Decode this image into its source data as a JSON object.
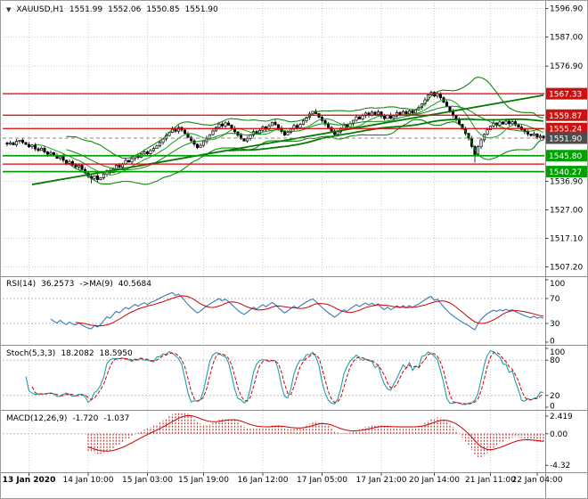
{
  "header": {
    "dropdown_icon": "▼",
    "symbol": "XAUUSD,H1",
    "open": "1551.99",
    "high": "1552.06",
    "low": "1550.85",
    "close": "1551.90"
  },
  "chart_data": {
    "type": "candlestick",
    "title": "XAUUSD,H1",
    "symbol": "XAUUSD",
    "timeframe": "H1",
    "main": {
      "ylim": [
        1505.5,
        1598.0
      ],
      "bar_step": 3.5,
      "grid_prices": [
        1596.9,
        1587.0,
        1576.9,
        1566.9,
        1556.9,
        1547.0,
        1536.9,
        1527.0,
        1517.1,
        1507.2
      ],
      "axis_ticks": [
        {
          "price": 1596.9,
          "label": "1596.90"
        },
        {
          "price": 1587.0,
          "label": "1587.00"
        },
        {
          "price": 1576.9,
          "label": "1576.90"
        },
        {
          "price": 1536.9,
          "label": "1536.90"
        },
        {
          "price": 1527.0,
          "label": "1527.00"
        },
        {
          "price": 1517.1,
          "label": "1517.10"
        },
        {
          "price": 1507.2,
          "label": "1507.20"
        }
      ],
      "level_badges": [
        {
          "price": 1567.33,
          "label": "1567.33",
          "color": "#cc1111",
          "type": "resistance"
        },
        {
          "price": 1559.87,
          "label": "1559.87",
          "color": "#cc1111",
          "type": "resistance"
        },
        {
          "price": 1555.24,
          "label": "1555.24",
          "color": "#cc1111",
          "type": "resistance"
        },
        {
          "price": 1551.9,
          "label": "1551.90",
          "color": "#4d4d4d",
          "type": "current-price"
        },
        {
          "price": 1545.8,
          "label": "1545.80",
          "color": "#00a000",
          "type": "support"
        },
        {
          "price": 1540.27,
          "label": "1540.27",
          "color": "#00a000",
          "type": "support"
        }
      ],
      "hlines": [
        {
          "price": 1567.33,
          "color": "#dd0000",
          "width": 1.3
        },
        {
          "price": 1559.87,
          "color": "#dd0000",
          "width": 1.3
        },
        {
          "price": 1555.24,
          "color": "#dd0000",
          "width": 1.3
        },
        {
          "price": 1542.9,
          "color": "#dd0000",
          "width": 1.3
        },
        {
          "price": 1545.8,
          "color": "#00a000",
          "width": 1.8
        },
        {
          "price": 1540.27,
          "color": "#00a000",
          "width": 1.8
        }
      ],
      "current_price": 1551.9,
      "trendline": {
        "i1": 8,
        "p1": 1535.8,
        "i2": 172,
        "p2": 1566.8
      },
      "ma_periods": {
        "fast": 10,
        "bollinger": 20,
        "slow": 72
      },
      "candles": {
        "closes": [
          1549.8,
          1550.3,
          1549.6,
          1550.8,
          1551.2,
          1550.4,
          1549.7,
          1548.9,
          1549.5,
          1548.2,
          1547.6,
          1548.4,
          1547.1,
          1546.3,
          1546.9,
          1545.8,
          1544.9,
          1545.6,
          1544.2,
          1543.1,
          1543.8,
          1542.6,
          1541.9,
          1542.5,
          1541.0,
          1539.8,
          1538.6,
          1537.9,
          1538.8,
          1537.5,
          1538.2,
          1539.4,
          1540.6,
          1539.9,
          1541.2,
          1542.5,
          1541.8,
          1543.0,
          1544.2,
          1543.6,
          1544.8,
          1545.9,
          1545.2,
          1546.4,
          1547.1,
          1546.5,
          1547.6,
          1548.3,
          1549.2,
          1550.4,
          1551.6,
          1552.8,
          1553.9,
          1555.1,
          1554.3,
          1555.6,
          1554.7,
          1553.5,
          1552.2,
          1551.0,
          1549.8,
          1548.6,
          1549.4,
          1550.7,
          1551.9,
          1553.1,
          1554.4,
          1555.6,
          1556.8,
          1556.1,
          1557.2,
          1556.4,
          1555.3,
          1554.1,
          1552.9,
          1551.7,
          1550.9,
          1551.8,
          1553.0,
          1554.2,
          1553.4,
          1554.6,
          1555.8,
          1555.0,
          1556.2,
          1557.4,
          1556.6,
          1555.4,
          1554.2,
          1553.0,
          1553.9,
          1555.1,
          1556.3,
          1555.5,
          1556.7,
          1557.9,
          1559.1,
          1560.3,
          1561.2,
          1560.4,
          1559.2,
          1558.0,
          1556.8,
          1555.6,
          1554.4,
          1553.2,
          1554.1,
          1555.3,
          1556.5,
          1555.7,
          1556.9,
          1558.1,
          1559.3,
          1558.5,
          1559.7,
          1560.6,
          1559.8,
          1560.9,
          1560.1,
          1561.0,
          1559.5,
          1558.7,
          1559.9,
          1558.8,
          1559.6,
          1560.8,
          1560.0,
          1561.1,
          1560.3,
          1561.4,
          1560.6,
          1561.7,
          1562.5,
          1563.8,
          1565.2,
          1566.9,
          1567.8,
          1566.5,
          1567.3,
          1565.9,
          1564.4,
          1562.8,
          1561.2,
          1559.8,
          1558.3,
          1556.7,
          1555.1,
          1553.5,
          1551.9,
          1549.0,
          1546.2,
          1548.9,
          1551.3,
          1553.2,
          1554.8,
          1556.1,
          1557.2,
          1556.4,
          1557.5,
          1556.8,
          1557.8,
          1556.9,
          1557.6,
          1556.5,
          1555.7,
          1554.9,
          1554.1,
          1553.3,
          1552.8,
          1553.4,
          1552.2,
          1552.6,
          1551.9
        ]
      },
      "wick_overrides": [
        {
          "i": 27,
          "low": 1536.2
        },
        {
          "i": 29,
          "low": 1536.6
        },
        {
          "i": 136,
          "high": 1568.4
        },
        {
          "i": 150,
          "low": 1543.4
        }
      ]
    },
    "time_axis": [
      {
        "label": "13 Jan 2020",
        "bar": 7,
        "bold": true
      },
      {
        "label": "14 Jan 10:00",
        "bar": 26
      },
      {
        "label": "15 Jan 03:00",
        "bar": 45
      },
      {
        "label": "15 Jan 19:00",
        "bar": 63
      },
      {
        "label": "16 Jan 12:00",
        "bar": 82
      },
      {
        "label": "17 Jan 05:00",
        "bar": 101
      },
      {
        "label": "17 Jan 21:00",
        "bar": 120
      },
      {
        "label": "20 Jan 14:00",
        "bar": 137
      },
      {
        "label": "21 Jan 11:00",
        "bar": 155
      },
      {
        "label": "22 Jan 04:00",
        "bar": 170
      }
    ],
    "indicators": {
      "rsi": {
        "name": "RSI(14)",
        "value": "36.2573",
        "ma_name": "->MA(9)",
        "ma_value": "40.5684",
        "period": 14,
        "ma_period": 9,
        "ticks": [
          100,
          70,
          30,
          0
        ],
        "levels": [
          70,
          30
        ],
        "line_color": "#3b79b5",
        "signal_color": "#cc0000"
      },
      "stoch": {
        "name": "Stoch(5,3,3)",
        "k_value": "18.2082",
        "d_value": "18.5950",
        "k": 5,
        "slowing": 3,
        "d": 3,
        "ticks": [
          100,
          80,
          20,
          0
        ],
        "levels": [
          80,
          20
        ],
        "k_color": "#1f9fae",
        "d_color": "#cc0000"
      },
      "macd": {
        "name": "MACD(12,26,9)",
        "value": "-1.720",
        "signal_value": "-1.037",
        "fast": 12,
        "slow": 26,
        "signal": 9,
        "ylim": [
          -4.9,
          2.9
        ],
        "ticks": [
          {
            "v": 2.419,
            "label": "2.419"
          },
          {
            "v": 0,
            "label": "0.00"
          },
          {
            "v": -4.32,
            "label": "-4.32"
          }
        ],
        "hist_color": "#c03a3a",
        "signal_color": "#cc0000"
      }
    },
    "colors": {
      "background": "#ffffff",
      "grid": "#cfcfcf",
      "candle_up_fill": "#ffffff",
      "candle_down_fill": "#000000",
      "candle_outline": "#000000",
      "ma_green": "#0d8a0d",
      "resistance_red": "#dd0000",
      "support_green": "#00a000"
    }
  }
}
